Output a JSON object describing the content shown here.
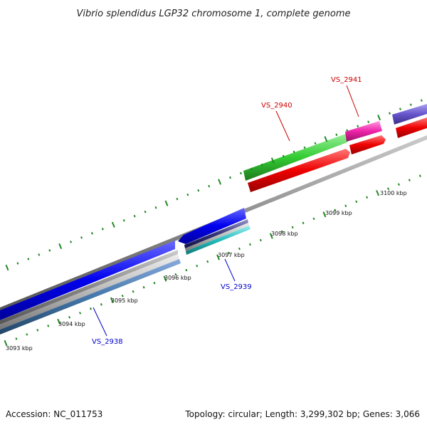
{
  "title": "Vibrio splendidus LGP32 chromosome 1, complete genome",
  "footer": {
    "accession": "Accession: NC_011753",
    "summary": "Topology: circular; Length: 3,299,302 bp; Genes: 3,066"
  },
  "scale": {
    "unit": "kbp",
    "ticks": [
      {
        "kbp": 3093,
        "label": "3093 kbp"
      },
      {
        "kbp": 3094,
        "label": "3094 kbp"
      },
      {
        "kbp": 3095,
        "label": "3095 kbp"
      },
      {
        "kbp": 3096,
        "label": "3096 kbp"
      },
      {
        "kbp": 3097,
        "label": "3097 kbp"
      },
      {
        "kbp": 3098,
        "label": "3098 kbp"
      },
      {
        "kbp": 3099,
        "label": "3099 kbp"
      },
      {
        "kbp": 3100,
        "label": "3100 kbp"
      }
    ]
  },
  "gene_labels": [
    {
      "name": "VS_2938",
      "color": "#0000cc"
    },
    {
      "name": "VS_2939",
      "color": "#0000cc"
    },
    {
      "name": "VS_2940",
      "color": "#cc0000"
    },
    {
      "name": "VS_2941",
      "color": "#cc0000"
    }
  ],
  "colors": {
    "forward_gene": "#0000ee",
    "reverse_gene": "#ee0000",
    "gene_green": "#33cc33",
    "gene_pink": "#ee22aa",
    "gene_purple": "#6655cc",
    "backbone": "#888888",
    "tick": "#228822",
    "gene_teal": "#22bbbb",
    "gene_steel": "#4477aa"
  }
}
